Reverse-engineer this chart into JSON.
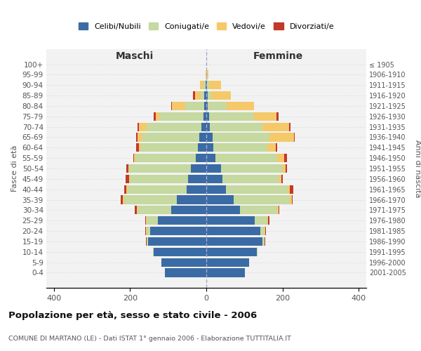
{
  "age_groups": [
    "100+",
    "95-99",
    "90-94",
    "85-89",
    "80-84",
    "75-79",
    "70-74",
    "65-69",
    "60-64",
    "55-59",
    "50-54",
    "45-49",
    "40-44",
    "35-39",
    "30-34",
    "25-29",
    "20-24",
    "15-19",
    "10-14",
    "5-9",
    "0-4"
  ],
  "birth_years": [
    "≤ 1905",
    "1906-1910",
    "1911-1915",
    "1916-1920",
    "1921-1925",
    "1926-1930",
    "1931-1935",
    "1936-1940",
    "1941-1945",
    "1946-1950",
    "1951-1955",
    "1956-1960",
    "1961-1965",
    "1966-1970",
    "1971-1975",
    "1976-1980",
    "1981-1985",
    "1986-1990",
    "1991-1995",
    "1996-2000",
    "2001-2005"
  ],
  "maschi": {
    "celibi": [
      0,
      0,
      2,
      5,
      5,
      8,
      12,
      18,
      22,
      28,
      40,
      48,
      52,
      78,
      92,
      128,
      148,
      152,
      138,
      118,
      108
    ],
    "coniugati": [
      0,
      0,
      5,
      10,
      50,
      115,
      145,
      152,
      152,
      158,
      162,
      152,
      155,
      138,
      88,
      28,
      8,
      4,
      2,
      0,
      0
    ],
    "vedovi": [
      0,
      1,
      10,
      15,
      35,
      10,
      20,
      10,
      3,
      3,
      3,
      3,
      3,
      3,
      3,
      2,
      2,
      1,
      0,
      0,
      0
    ],
    "divorziati": [
      0,
      0,
      0,
      5,
      2,
      5,
      3,
      5,
      8,
      3,
      5,
      8,
      5,
      5,
      4,
      2,
      2,
      1,
      0,
      0,
      0
    ]
  },
  "femmine": {
    "nubili": [
      0,
      0,
      2,
      3,
      4,
      7,
      10,
      17,
      19,
      24,
      38,
      43,
      52,
      72,
      88,
      128,
      142,
      148,
      132,
      112,
      102
    ],
    "coniugate": [
      0,
      1,
      5,
      10,
      50,
      118,
      138,
      148,
      142,
      162,
      162,
      148,
      162,
      148,
      98,
      32,
      10,
      4,
      2,
      0,
      0
    ],
    "vedove": [
      0,
      5,
      32,
      52,
      72,
      60,
      70,
      65,
      22,
      18,
      8,
      6,
      6,
      4,
      3,
      3,
      2,
      1,
      0,
      0,
      0
    ],
    "divorziate": [
      0,
      0,
      0,
      0,
      0,
      5,
      3,
      3,
      3,
      8,
      3,
      3,
      8,
      3,
      2,
      2,
      2,
      1,
      0,
      0,
      0
    ]
  },
  "colors": {
    "celibi_nubili": "#3B6BA5",
    "coniugati": "#C5D9A0",
    "vedovi": "#F5C96A",
    "divorziati": "#C0392B"
  },
  "xlim": 420,
  "title": "Popolazione per età, sesso e stato civile - 2006",
  "subtitle": "COMUNE DI MARTANO (LE) - Dati ISTAT 1° gennaio 2006 - Elaborazione TUTTITALIA.IT",
  "xlabel_left": "Maschi",
  "xlabel_right": "Femmine",
  "ylabel_left": "Fasce di età",
  "ylabel_right": "Anni di nascita",
  "bg_color": "#f2f2f2",
  "grid_color": "#dddddd"
}
